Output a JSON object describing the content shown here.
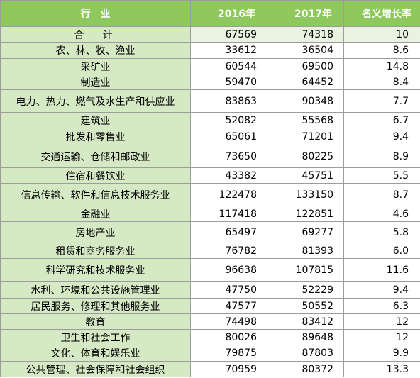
{
  "table": {
    "headers": [
      "行　业",
      "2016年",
      "2017年",
      "名义增长率"
    ],
    "rows": [
      {
        "industry": "合　计",
        "y2016": "67569",
        "y2017": "74318",
        "growth": "10"
      },
      {
        "industry": "农、林、牧、渔业",
        "y2016": "33612",
        "y2017": "36504",
        "growth": "8.6"
      },
      {
        "industry": "采矿业",
        "y2016": "60544",
        "y2017": "69500",
        "growth": "14.8"
      },
      {
        "industry": "制造业",
        "y2016": "59470",
        "y2017": "64452",
        "growth": "8.4"
      },
      {
        "industry": "电力、热力、燃气及水生产和供应业",
        "y2016": "83863",
        "y2017": "90348",
        "growth": "7.7"
      },
      {
        "industry": "建筑业",
        "y2016": "52082",
        "y2017": "55568",
        "growth": "6.7"
      },
      {
        "industry": "批发和零售业",
        "y2016": "65061",
        "y2017": "71201",
        "growth": "9.4"
      },
      {
        "industry": "交通运输、仓储和邮政业",
        "y2016": "73650",
        "y2017": "80225",
        "growth": "8.9"
      },
      {
        "industry": "住宿和餐饮业",
        "y2016": "43382",
        "y2017": "45751",
        "growth": "5.5"
      },
      {
        "industry": "信息传输、软件和信息技术服务业",
        "y2016": "122478",
        "y2017": "133150",
        "growth": "8.7"
      },
      {
        "industry": "金融业",
        "y2016": "117418",
        "y2017": "122851",
        "growth": "4.6"
      },
      {
        "industry": "房地产业",
        "y2016": "65497",
        "y2017": "69277",
        "growth": "5.8"
      },
      {
        "industry": "租赁和商务服务业",
        "y2016": "76782",
        "y2017": "81393",
        "growth": "6.0"
      },
      {
        "industry": "科学研究和技术服务业",
        "y2016": "96638",
        "y2017": "107815",
        "growth": "11.6"
      },
      {
        "industry": "水利、环境和公共设施管理业",
        "y2016": "47750",
        "y2017": "52229",
        "growth": "9.4"
      },
      {
        "industry": "居民服务、修理和其他服务业",
        "y2016": "47577",
        "y2017": "50552",
        "growth": "6.3"
      },
      {
        "industry": "教育",
        "y2016": "74498",
        "y2017": "83412",
        "growth": "12"
      },
      {
        "industry": "卫生和社会工作",
        "y2016": "80026",
        "y2017": "89648",
        "growth": "12"
      },
      {
        "industry": "文化、体育和娱乐业",
        "y2016": "79875",
        "y2017": "87803",
        "growth": "9.9"
      },
      {
        "industry": "公共管理、社会保障和社会组织",
        "y2016": "70959",
        "y2017": "80372",
        "growth": "13.3"
      }
    ]
  },
  "colors": {
    "header_bg": "#8fc95d",
    "industry_bg": "#d6e9c5",
    "total_bg": "#eaf3e1"
  }
}
